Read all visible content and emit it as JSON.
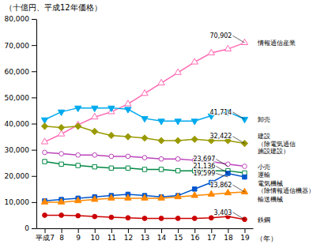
{
  "chart_data": {
    "type": "line",
    "title": "（十億円、平成12年価格）",
    "xlabel": "（年）",
    "x": [
      7,
      8,
      9,
      10,
      11,
      12,
      13,
      14,
      15,
      16,
      17,
      18,
      19
    ],
    "xlim": [
      6.5,
      19.5
    ],
    "xticks": [
      {
        "value": 7,
        "label": "平成7"
      },
      8,
      9,
      10,
      11,
      12,
      13,
      14,
      15,
      16,
      17,
      18,
      19
    ],
    "ylim": [
      0,
      80000
    ],
    "yticks": [
      0,
      {
        "value": 10000,
        "label": "10,000"
      },
      {
        "value": 20000,
        "label": "20,000"
      },
      {
        "value": 30000,
        "label": "30,000"
      },
      {
        "value": 40000,
        "label": "40,000"
      },
      {
        "value": 50000,
        "label": "50,000"
      },
      {
        "value": 60000,
        "label": "60,000"
      },
      {
        "value": 70000,
        "label": "70,000"
      },
      {
        "value": 80000,
        "label": "80,000"
      }
    ],
    "grid": false,
    "series": [
      {
        "name": "情報通信産業",
        "color": "#ff69b4",
        "marker": "triangle-up-open",
        "values": [
          33000,
          36000,
          39500,
          42500,
          44500,
          47500,
          51500,
          55500,
          59500,
          63500,
          67000,
          68500,
          70902
        ]
      },
      {
        "name": "卸売",
        "color": "#00aaee",
        "marker": "triangle-down",
        "values": [
          41500,
          44500,
          46000,
          46000,
          46000,
          45500,
          42000,
          41000,
          41000,
          41000,
          43000,
          44500,
          41714
        ]
      },
      {
        "name": "建設\n（除電気通信\n施設建設）",
        "color": "#999900",
        "marker": "diamond",
        "values": [
          39000,
          38500,
          39000,
          37000,
          35500,
          35000,
          34500,
          33500,
          33500,
          34000,
          33500,
          33500,
          32422
        ]
      },
      {
        "name": "小売",
        "color": "#bb44bb",
        "marker": "circle-open",
        "values": [
          29000,
          28500,
          28000,
          28000,
          27500,
          27500,
          27000,
          26500,
          26500,
          26000,
          25500,
          24500,
          23697
        ]
      },
      {
        "name": "運輸",
        "color": "#008844",
        "marker": "square-open",
        "values": [
          25500,
          24500,
          24000,
          23500,
          23000,
          23000,
          22500,
          22500,
          22000,
          22000,
          22000,
          22000,
          21136
        ]
      },
      {
        "name": "電気機械\n（除情報通信機器）",
        "color": "#0055cc",
        "marker": "square",
        "values": [
          10500,
          11000,
          11500,
          12000,
          12500,
          13000,
          12500,
          12000,
          12500,
          15000,
          17500,
          21000,
          19599
        ]
      },
      {
        "name": "輸送機械",
        "color": "#ff8800",
        "marker": "triangle-up",
        "values": [
          10000,
          10000,
          10500,
          11000,
          11500,
          11500,
          11500,
          11500,
          12000,
          12500,
          13000,
          13500,
          13862
        ]
      },
      {
        "name": "鉄鋼",
        "color": "#cc0000",
        "marker": "circle",
        "values": [
          5000,
          5000,
          4800,
          4500,
          4200,
          4000,
          3800,
          3800,
          3800,
          3800,
          4000,
          4500,
          3403
        ]
      }
    ],
    "annotations": [
      {
        "text": "70,902",
        "x": 19,
        "y": 70902
      },
      {
        "text": "41,714",
        "x": 19,
        "y": 41714
      },
      {
        "text": "32,422",
        "x": 19,
        "y": 32422
      },
      {
        "text": "23,697",
        "x": 18,
        "y": 23697
      },
      {
        "text": "21,136",
        "x": 18,
        "y": 21136
      },
      {
        "text": "19,599",
        "x": 18,
        "y": 19599
      },
      {
        "text": "13,862",
        "x": 19,
        "y": 13862
      },
      {
        "text": "3,403",
        "x": 19,
        "y": 3403
      }
    ]
  }
}
